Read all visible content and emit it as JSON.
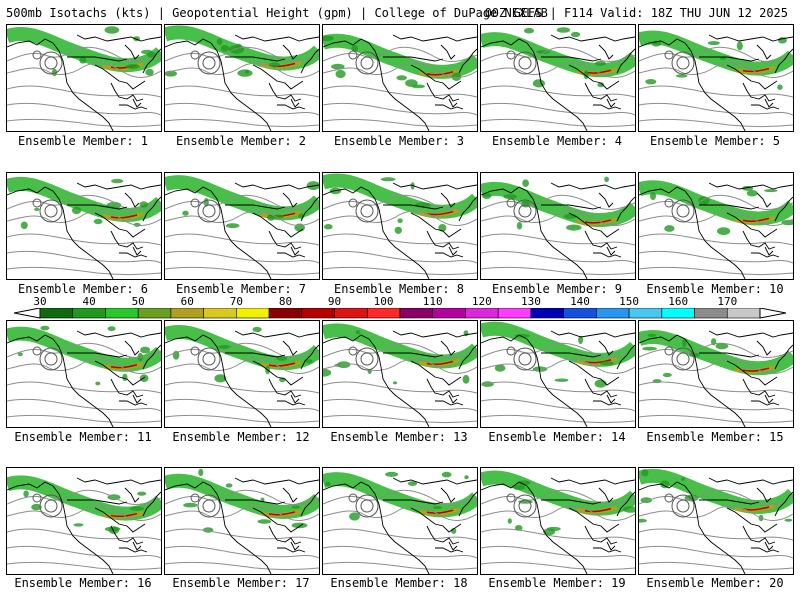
{
  "header": {
    "left": "500mb Isotachs (kts) | Geopotential Height (gpm) | College of DuPage NEXLAB",
    "right": "00Z GEFS | F114 Valid: 18Z THU JUN 12 2025"
  },
  "colorbar": {
    "labels": [
      "30",
      "40",
      "50",
      "60",
      "70",
      "80",
      "90",
      "100",
      "110",
      "120",
      "130",
      "140",
      "150",
      "160",
      "170"
    ],
    "colors": [
      "#0f6a0f",
      "#1f9a1f",
      "#28c828",
      "#6aa020",
      "#b0a020",
      "#d8c820",
      "#f0f000",
      "#8a0000",
      "#b40000",
      "#dc1414",
      "#ff2828",
      "#8a0066",
      "#b400a0",
      "#dc28dc",
      "#ff3cff",
      "#0000b4",
      "#1450dc",
      "#2896f0",
      "#46c8f0",
      "#00ffff",
      "#8c8c8c",
      "#c8c8c8"
    ]
  },
  "panels": [
    {
      "caption": "Ensemble Member: 1"
    },
    {
      "caption": "Ensemble Member: 2"
    },
    {
      "caption": "Ensemble Member: 3"
    },
    {
      "caption": "Ensemble Member: 4"
    },
    {
      "caption": "Ensemble Member: 5"
    },
    {
      "caption": "Ensemble Member: 6"
    },
    {
      "caption": "Ensemble Member: 7"
    },
    {
      "caption": "Ensemble Member: 8"
    },
    {
      "caption": "Ensemble Member: 9"
    },
    {
      "caption": "Ensemble Member: 10"
    },
    {
      "caption": "Ensemble Member: 11"
    },
    {
      "caption": "Ensemble Member: 12"
    },
    {
      "caption": "Ensemble Member: 13"
    },
    {
      "caption": "Ensemble Member: 14"
    },
    {
      "caption": "Ensemble Member: 15"
    },
    {
      "caption": "Ensemble Member: 16"
    },
    {
      "caption": "Ensemble Member: 17"
    },
    {
      "caption": "Ensemble Member: 18"
    },
    {
      "caption": "Ensemble Member: 19"
    },
    {
      "caption": "Ensemble Member: 20"
    }
  ]
}
